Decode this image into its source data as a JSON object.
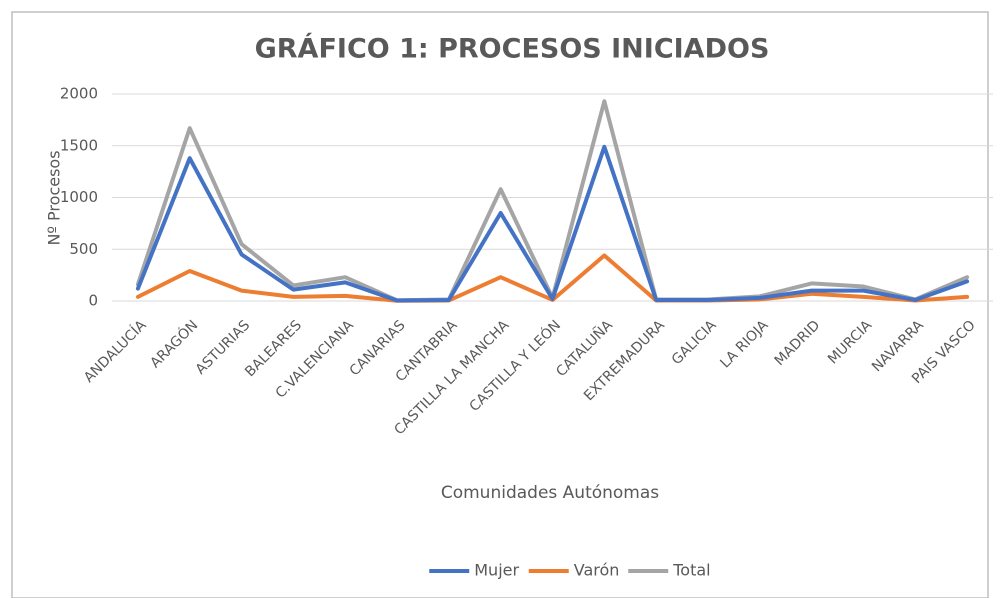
{
  "chart_data": {
    "type": "line",
    "title": "GRÁFICO 1: PROCESOS INICIADOS",
    "x_label": "Comunidades Autónomas",
    "y_label": "Nº Procesos",
    "categories": [
      "ANDALUCÍA",
      "ARAGÓN",
      "ASTURIAS",
      "BALEARES",
      "C.VALENCIANA",
      "CANARIAS",
      "CANTABRIA",
      "CASTILLA LA MANCHA",
      "CASTILLA Y LEÓN",
      "CATALUÑA",
      "EXTREMADURA",
      "GALICIA",
      "LA RIOJA",
      "MADRID",
      "MURCIA",
      "NAVARRA",
      "PAIS VASCO"
    ],
    "series": [
      {
        "name": "Mujer",
        "color": "#4472c4",
        "values": [
          120,
          1380,
          450,
          110,
          180,
          5,
          10,
          850,
          20,
          1490,
          10,
          10,
          30,
          100,
          100,
          10,
          190
        ]
      },
      {
        "name": "Varón",
        "color": "#ed7d31",
        "values": [
          40,
          290,
          100,
          40,
          50,
          2,
          5,
          230,
          10,
          440,
          5,
          5,
          15,
          70,
          40,
          5,
          40
        ]
      },
      {
        "name": "Total",
        "color": "#a5a5a5",
        "values": [
          160,
          1670,
          550,
          150,
          230,
          7,
          15,
          1080,
          30,
          1930,
          15,
          15,
          45,
          170,
          140,
          15,
          230
        ]
      }
    ],
    "ylim": [
      0,
      2000
    ],
    "yticks": [
      0,
      500,
      1000,
      1500,
      2000
    ],
    "grid": true,
    "legend": "bottom"
  }
}
